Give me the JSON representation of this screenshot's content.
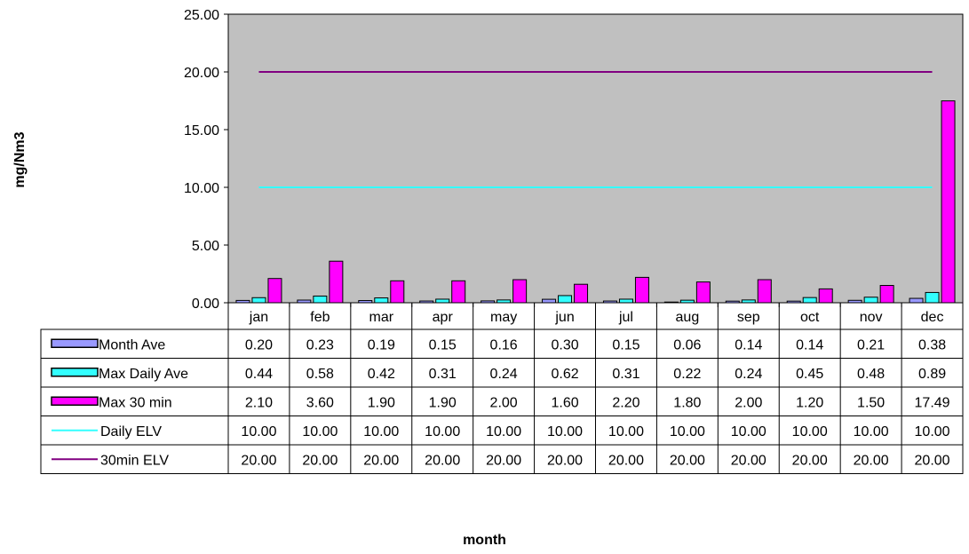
{
  "chart_data": {
    "type": "bar",
    "ylabel": "mg/Nm3",
    "xlabel": "month",
    "ylim": [
      0,
      25
    ],
    "yticks": [
      "0.00",
      "5.00",
      "10.00",
      "15.00",
      "20.00",
      "25.00"
    ],
    "categories": [
      "jan",
      "feb",
      "mar",
      "apr",
      "may",
      "jun",
      "jul",
      "aug",
      "sep",
      "oct",
      "nov",
      "dec"
    ],
    "series": [
      {
        "name": "Month Ave",
        "kind": "bar",
        "color": "#9999ff",
        "values": [
          0.2,
          0.23,
          0.19,
          0.15,
          0.16,
          0.3,
          0.15,
          0.06,
          0.14,
          0.14,
          0.21,
          0.38
        ],
        "labels": [
          "0.20",
          "0.23",
          "0.19",
          "0.15",
          "0.16",
          "0.30",
          "0.15",
          "0.06",
          "0.14",
          "0.14",
          "0.21",
          "0.38"
        ]
      },
      {
        "name": "Max Daily Ave",
        "kind": "bar",
        "color": "#33ffff",
        "values": [
          0.44,
          0.58,
          0.42,
          0.31,
          0.24,
          0.62,
          0.31,
          0.22,
          0.24,
          0.45,
          0.48,
          0.89
        ],
        "labels": [
          "0.44",
          "0.58",
          "0.42",
          "0.31",
          "0.24",
          "0.62",
          "0.31",
          "0.22",
          "0.24",
          "0.45",
          "0.48",
          "0.89"
        ]
      },
      {
        "name": "Max 30 min",
        "kind": "bar",
        "color": "#ff00ff",
        "values": [
          2.1,
          3.6,
          1.9,
          1.9,
          2.0,
          1.6,
          2.2,
          1.8,
          2.0,
          1.2,
          1.5,
          17.49
        ],
        "labels": [
          "2.10",
          "3.60",
          "1.90",
          "1.90",
          "2.00",
          "1.60",
          "2.20",
          "1.80",
          "2.00",
          "1.20",
          "1.50",
          "17.49"
        ]
      },
      {
        "name": "Daily ELV",
        "kind": "line",
        "color": "#33ffff",
        "values": [
          10,
          10,
          10,
          10,
          10,
          10,
          10,
          10,
          10,
          10,
          10,
          10
        ],
        "labels": [
          "10.00",
          "10.00",
          "10.00",
          "10.00",
          "10.00",
          "10.00",
          "10.00",
          "10.00",
          "10.00",
          "10.00",
          "10.00",
          "10.00"
        ]
      },
      {
        "name": "30min ELV",
        "kind": "line",
        "color": "#800080",
        "values": [
          20,
          20,
          20,
          20,
          20,
          20,
          20,
          20,
          20,
          20,
          20,
          20
        ],
        "labels": [
          "20.00",
          "20.00",
          "20.00",
          "20.00",
          "20.00",
          "20.00",
          "20.00",
          "20.00",
          "20.00",
          "20.00",
          "20.00",
          "20.00"
        ]
      }
    ],
    "plot_background": "#c0c0c0",
    "grid": false,
    "legend": "data-table"
  }
}
